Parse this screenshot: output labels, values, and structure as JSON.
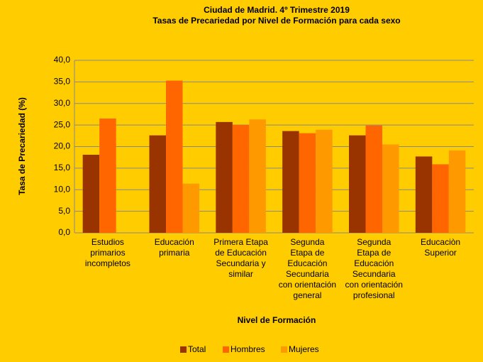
{
  "chart_data": {
    "type": "bar",
    "title": "Ciudad de Madrid. 4º Trimestre 2019",
    "subtitle": "Tasas de Precariedad por Nivel de Formación para cada sexo",
    "y_label": "Tasa de Precariedad (%)",
    "x_label": "Nivel de Formación",
    "categories": [
      "Estudios\nprimarios\nincompletos",
      "Educación\nprimaria",
      "Primera Etapa\nde Educación\nSecundaria y\nsimilar",
      "Segunda\nEtapa de\nEducación\nSecundaria\ncon orientación\ngeneral",
      "Segunda\nEtapa de\nEducación\nSecundaria\ncon orientación\nprofesional",
      "Educaciòn\nSuperior"
    ],
    "series": [
      {
        "name": "Total",
        "color": "#993300",
        "values": [
          18.1,
          22.6,
          25.7,
          23.6,
          22.6,
          17.7
        ]
      },
      {
        "name": "Hombres",
        "color": "#FF6600",
        "values": [
          26.5,
          35.3,
          25.0,
          23.1,
          24.9,
          15.9
        ]
      },
      {
        "name": "Mujeres",
        "color": "#FF9900",
        "values": [
          null,
          11.4,
          26.3,
          23.9,
          20.5,
          19.1
        ]
      }
    ],
    "ylim": [
      0,
      40
    ],
    "yticks": [
      {
        "value": 0,
        "label": "0,0"
      },
      {
        "value": 5,
        "label": "5,0"
      },
      {
        "value": 10,
        "label": "10,0"
      },
      {
        "value": 15,
        "label": "15,0"
      },
      {
        "value": 20,
        "label": "20,0"
      },
      {
        "value": 25,
        "label": "25,0"
      },
      {
        "value": 30,
        "label": "30,0"
      },
      {
        "value": 35,
        "label": "35,0"
      },
      {
        "value": 40,
        "label": "40,0"
      }
    ],
    "grid": true,
    "legend": "bottom"
  }
}
